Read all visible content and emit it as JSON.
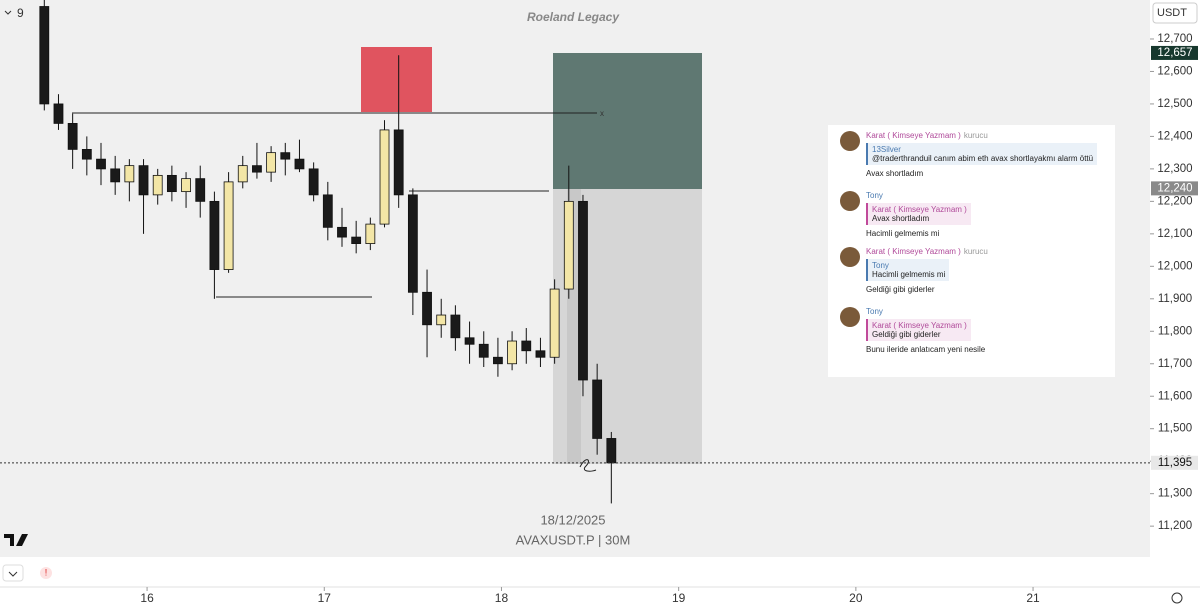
{
  "chart_data": {
    "type": "candlestick",
    "title": "Roeland Legacy",
    "interval_count": "9",
    "currency": "USDT",
    "date_label": "18/12/2025",
    "symbol": "AVAXUSDT.P | 30M",
    "xlim": [
      15.17,
      21.66
    ],
    "xticks": [
      16,
      17,
      18,
      19,
      20,
      21
    ],
    "ylim": [
      11105,
      12820
    ],
    "yticks": [
      {
        "value": 11200,
        "label": "11,200"
      },
      {
        "value": 11300,
        "label": "11,300"
      },
      {
        "value": 11400,
        "label": "11,400"
      },
      {
        "value": 11500,
        "label": "11,500"
      },
      {
        "value": 11600,
        "label": "11,600"
      },
      {
        "value": 11700,
        "label": "11,700"
      },
      {
        "value": 11800,
        "label": "11,800"
      },
      {
        "value": 11900,
        "label": "11,900"
      },
      {
        "value": 12000,
        "label": "12,000"
      },
      {
        "value": 12100,
        "label": "12,100"
      },
      {
        "value": 12200,
        "label": "12,200"
      },
      {
        "value": 12300,
        "label": "12,300"
      },
      {
        "value": 12400,
        "label": "12,400"
      },
      {
        "value": 12500,
        "label": "12,500"
      },
      {
        "value": 12600,
        "label": "12,600"
      },
      {
        "value": 12700,
        "label": "12,700"
      }
    ],
    "price_labels": [
      {
        "value": 12657,
        "label": "12,657"
      },
      {
        "value": 12240,
        "label": "12,240"
      },
      {
        "value": 11395,
        "label": "11,395"
      }
    ],
    "up_color": "#f3e6a6",
    "down_color": "#1a1a1a",
    "x": [
      15.42,
      15.5,
      15.58,
      15.66,
      15.74,
      15.82,
      15.9,
      15.98,
      16.06,
      16.14,
      16.22,
      16.3,
      16.38,
      16.46,
      16.54,
      16.62,
      16.7,
      16.78,
      16.86,
      16.94,
      17.02,
      17.1,
      17.18,
      17.26,
      17.34,
      17.42,
      17.5,
      17.58,
      17.66,
      17.74,
      17.82,
      17.9,
      17.98,
      18.06,
      18.14,
      18.22,
      18.3,
      18.38,
      18.46,
      18.54,
      18.62
    ],
    "open": [
      12800,
      12500,
      12440,
      12360,
      12330,
      12300,
      12260,
      12310,
      12220,
      12280,
      12230,
      12270,
      12200,
      11990,
      12260,
      12310,
      12290,
      12350,
      12330,
      12300,
      12220,
      12120,
      12090,
      12070,
      12130,
      12420,
      12220,
      11920,
      11820,
      11850,
      11780,
      11760,
      11720,
      11700,
      11770,
      11740,
      11720,
      11930,
      12200,
      11650,
      11470
    ],
    "high": [
      12820,
      12530,
      12470,
      12400,
      12380,
      12340,
      12330,
      12330,
      12300,
      12310,
      12290,
      12310,
      12230,
      12290,
      12340,
      12380,
      12370,
      12380,
      12390,
      12320,
      12260,
      12180,
      12140,
      12150,
      12450,
      12650,
      12240,
      11990,
      11900,
      11880,
      11830,
      11800,
      11780,
      11800,
      11810,
      11780,
      11960,
      12310,
      12220,
      11700,
      11490
    ],
    "low": [
      12480,
      12420,
      12300,
      12280,
      12250,
      12220,
      12200,
      12100,
      12190,
      12200,
      12180,
      12150,
      11900,
      11980,
      12240,
      12270,
      12260,
      12280,
      12290,
      12200,
      12080,
      12060,
      12040,
      12050,
      12120,
      12180,
      11850,
      11720,
      11780,
      11740,
      11700,
      11690,
      11660,
      11680,
      11700,
      11690,
      11700,
      11900,
      11600,
      11420,
      11270
    ],
    "close": [
      12500,
      12440,
      12360,
      12330,
      12300,
      12260,
      12310,
      12220,
      12280,
      12230,
      12270,
      12200,
      11990,
      12260,
      12310,
      12290,
      12350,
      12330,
      12300,
      12220,
      12120,
      12090,
      12070,
      12130,
      12420,
      12220,
      11920,
      11820,
      11850,
      11780,
      11760,
      11720,
      11700,
      11770,
      11740,
      11720,
      11930,
      12200,
      11650,
      11470,
      11395
    ]
  },
  "chat": {
    "messages": [
      {
        "author": "Karat ( Kimseye Yazmam )",
        "role": "kurucu",
        "reply_to": "13Silver",
        "reply_text": "@traderthranduil canım abim eth avax shortlayakmı alarm öttü",
        "text": "Avax shortladım"
      },
      {
        "author": "Tony",
        "reply_to": "Karat ( Kimseye Yazmam )",
        "reply_text": "Avax shortladım",
        "text": "Hacimli gelmemis mi"
      },
      {
        "author": "Karat ( Kimseye Yazmam )",
        "role": "kurucu",
        "reply_to": "Tony",
        "reply_text": "Hacimli gelmemis mi",
        "text": "Geldiği gibi giderler"
      },
      {
        "author": "Tony",
        "reply_to": "Karat ( Kimseye Yazmam )",
        "reply_text": "Geldiği gibi giderler",
        "text": "Bunu ileride anlatıcam yeni nesile"
      }
    ]
  }
}
